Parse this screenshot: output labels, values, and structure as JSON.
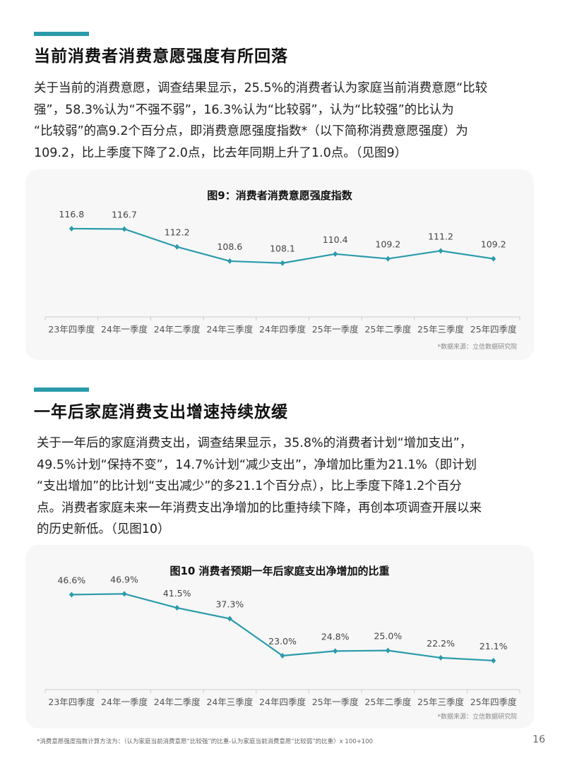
{
  "section1": {
    "title": "当前消费者消费意愿强度有所回落",
    "paragraph_lines": [
      "关于当前的消费意愿，调查结果显示，25.5%的消费者认为家庭当前消费意愿“比较",
      "强”，58.3%认为“不强不弱”，16.3%认为“比较弱”，认为“比较强”的比认为",
      "“比较弱”的高9.2个百分点，即消费意愿强度指数*（以下简称消费意愿强度）为",
      "109.2，比上季度下降了2.0点，比去年同期上升了1.0点。（见图9）"
    ]
  },
  "section2": {
    "title": "一年后家庭消费支出增速持续放缓",
    "paragraph_lines": [
      "关于一年后的家庭消费支出，调查结果显示，35.8%的消费者计划“增加支出”，",
      "49.5%计划“保持不变”，14.7%计划“减少支出”，净增加比重为21.1%（即计划",
      "“支出增加”的比计划“支出减少”的多21.1个百分点），比上季度下降1.2个百分",
      "点。消费者家庭未来一年消费支出净增加的比重持续下降，再创本项调查开展以来",
      "的历史新低。（见图10）"
    ]
  },
  "chart_data": [
    {
      "type": "line",
      "title": "图9：消费者消费意愿强度指数",
      "categories": [
        "23年四季度",
        "24年一季度",
        "24年二季度",
        "24年三季度",
        "24年四季度",
        "25年一季度",
        "25年二季度",
        "25年三季度",
        "25年四季度"
      ],
      "values": [
        116.8,
        116.7,
        112.2,
        108.6,
        108.1,
        110.4,
        109.2,
        111.2,
        109.2
      ],
      "labels": [
        "116.8",
        "116.7",
        "112.2",
        "108.6",
        "108.1",
        "110.4",
        "109.2",
        "111.2",
        "109.2"
      ],
      "ylim": [
        94.5,
        120
      ],
      "grid": false,
      "source": "*数据来源：立信数据研究院",
      "color": "#2a9bab"
    },
    {
      "type": "line",
      "title": "图10 消费者预期一年后家庭支出净增加的比重",
      "categories": [
        "23年四季度",
        "24年一季度",
        "24年二季度",
        "24年三季度",
        "24年四季度",
        "25年一季度",
        "25年二季度",
        "25年三季度",
        "25年四季度"
      ],
      "values": [
        46.6,
        46.9,
        41.5,
        37.3,
        23.0,
        24.8,
        25.0,
        22.2,
        21.1
      ],
      "labels": [
        "46.6%",
        "46.9%",
        "41.5%",
        "37.3%",
        "23.0%",
        "24.8%",
        "25.0%",
        "22.2%",
        "21.1%"
      ],
      "ylim": [
        9.9,
        50
      ],
      "grid": false,
      "source": "*数据来源：立信数据研究院",
      "color": "#2a9bab"
    }
  ],
  "footnote": "*消费意愿强度指数计算方法为：（认为家庭当前消费意愿“比较强”的比重-认为家庭当前消费意愿“比较弱”的比重）x 100+100",
  "page_number": "16"
}
